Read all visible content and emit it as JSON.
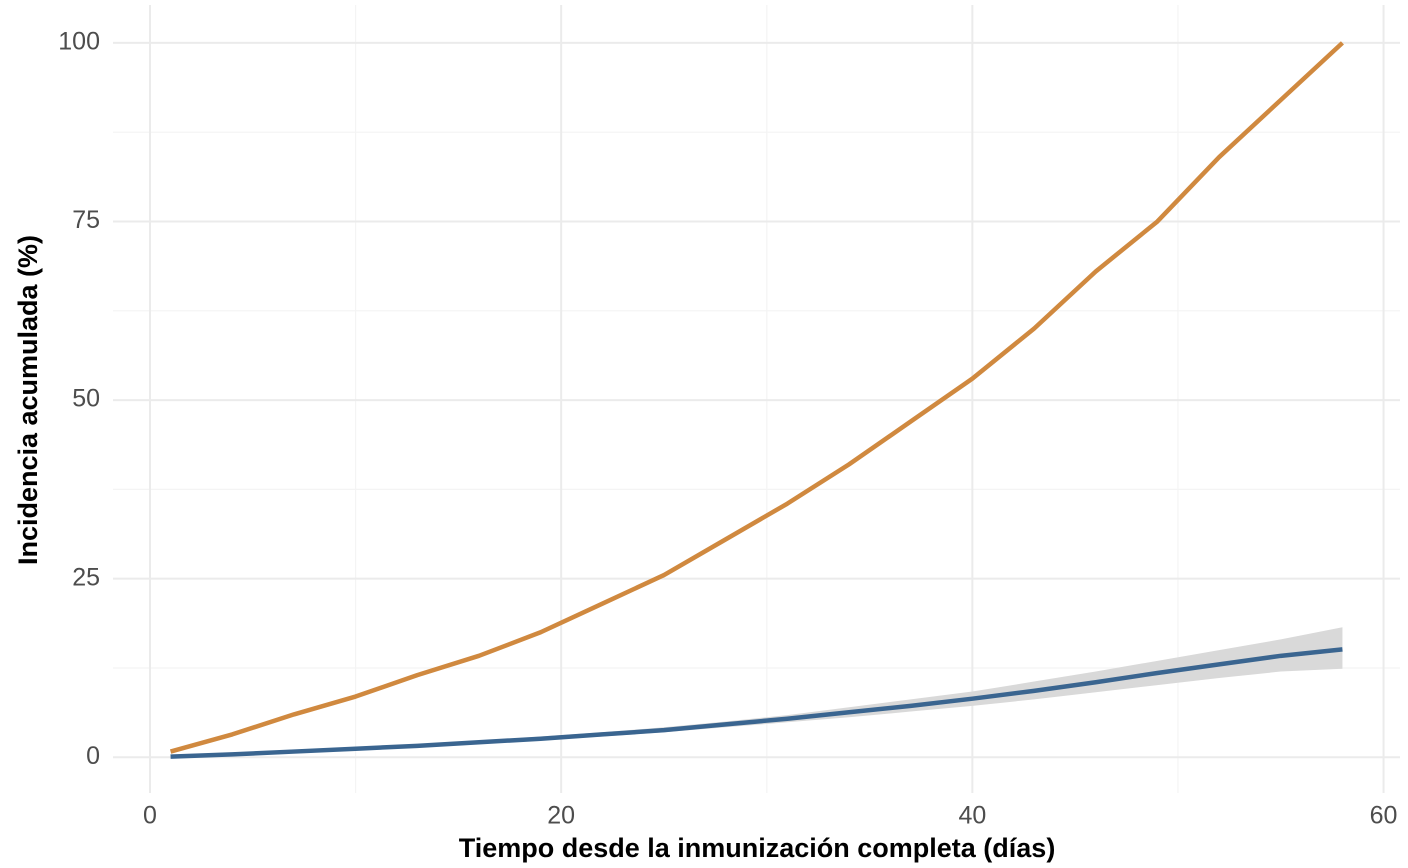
{
  "chart_data": {
    "type": "line",
    "xlabel": "Tiempo desde la inmunización completa (días)",
    "ylabel": "Incidencia acumulada (%)",
    "x": [
      1,
      4,
      7,
      10,
      13,
      16,
      19,
      22,
      25,
      28,
      31,
      34,
      37,
      40,
      43,
      46,
      49,
      52,
      55,
      58
    ],
    "series": [
      {
        "color": "#d0893f",
        "values": [
          0.8,
          3.2,
          6,
          8.5,
          11.5,
          14.2,
          17.5,
          21.5,
          25.5,
          30.5,
          35.5,
          41,
          47,
          53,
          60,
          68,
          75,
          84,
          92,
          100
        ]
      },
      {
        "color": "#3a6590",
        "band_color": "#d9d9d9",
        "values": [
          0.1,
          0.4,
          0.8,
          1.2,
          1.6,
          2.1,
          2.6,
          3.2,
          3.8,
          4.6,
          5.4,
          6.3,
          7.2,
          8.2,
          9.3,
          10.5,
          11.8,
          13.0,
          14.2,
          15.1
        ],
        "lower": [
          0.1,
          0.35,
          0.7,
          1.1,
          1.5,
          1.9,
          2.4,
          2.9,
          3.5,
          4.2,
          4.9,
          5.6,
          6.4,
          7.2,
          8.1,
          9.1,
          10.1,
          11.1,
          12.0,
          12.4
        ],
        "upper": [
          0.1,
          0.45,
          0.9,
          1.3,
          1.8,
          2.3,
          2.9,
          3.5,
          4.2,
          5.0,
          5.9,
          7.0,
          8.1,
          9.2,
          10.6,
          12.0,
          13.5,
          15.0,
          16.5,
          18.2
        ]
      }
    ],
    "xlim": [
      -1.8,
      60.8
    ],
    "ylim": [
      -5,
      105.3
    ],
    "xticks": [
      0,
      20,
      40,
      60
    ],
    "yticks": [
      0,
      25,
      50,
      75,
      100
    ],
    "xminorticks": [
      10,
      30,
      50
    ],
    "yminorticks": [
      12.5,
      37.5,
      62.5,
      87.5
    ],
    "grid": true
  }
}
